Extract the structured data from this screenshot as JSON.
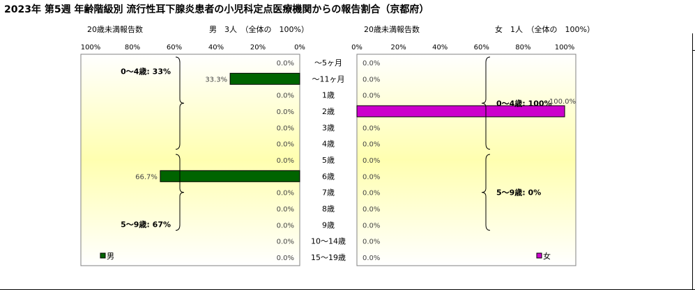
{
  "title": "2023年 第5週 年齢階級別 流行性耳下腺炎患者の小児科定点医療機関からの報告割合（京都府）",
  "chart_data": {
    "type": "bar",
    "orientation": "horizontal-butterfly",
    "categories": [
      "～5ヶ月",
      "～11ヶ月",
      "1歳",
      "2歳",
      "3歳",
      "4歳",
      "5歳",
      "6歳",
      "7歳",
      "8歳",
      "9歳",
      "10～14歳",
      "15～19歳"
    ],
    "xlim": [
      0,
      100
    ],
    "x_ticks": [
      "100%",
      "80%",
      "60%",
      "40%",
      "20%",
      "0%"
    ],
    "x_ticks_right": [
      "0%",
      "20%",
      "40%",
      "60%",
      "80%",
      "100%"
    ],
    "grid": false,
    "panels": [
      {
        "side": "left",
        "header_under20": "20歳未満報告数",
        "header_count": "男　3人　（全体の　100%）",
        "legend_label": "男",
        "color": "#006400",
        "values": [
          0.0,
          33.3,
          0.0,
          0.0,
          0.0,
          0.0,
          0.0,
          66.7,
          0.0,
          0.0,
          0.0,
          0.0,
          0.0
        ],
        "value_labels": [
          "0.0%",
          "33.3%",
          "0.0%",
          "0.0%",
          "0.0%",
          "0.0%",
          "0.0%",
          "66.7%",
          "0.0%",
          "0.0%",
          "0.0%",
          "0.0%",
          "0.0%"
        ],
        "groups": [
          {
            "label": "0～4歳: 33%",
            "from": 0,
            "to": 5
          },
          {
            "label": "5～9歳: 67%",
            "from": 6,
            "to": 10
          }
        ]
      },
      {
        "side": "right",
        "header_under20": "20歳未満報告数",
        "header_count": "女　1人　（全体の　100%）",
        "legend_label": "女",
        "color": "#cc00cc",
        "values": [
          0.0,
          0.0,
          0.0,
          100.0,
          0.0,
          0.0,
          0.0,
          0.0,
          0.0,
          0.0,
          0.0,
          0.0,
          0.0
        ],
        "value_labels": [
          "0.0%",
          "0.0%",
          "0.0%",
          "100.0%",
          "0.0%",
          "0.0%",
          "0.0%",
          "0.0%",
          "0.0%",
          "0.0%",
          "0.0%",
          "0.0%",
          "0.0%"
        ],
        "groups": [
          {
            "label": "0～4歳: 100%",
            "from": 0,
            "to": 5
          },
          {
            "label": "5～9歳: 0%",
            "from": 6,
            "to": 10
          }
        ]
      }
    ]
  }
}
